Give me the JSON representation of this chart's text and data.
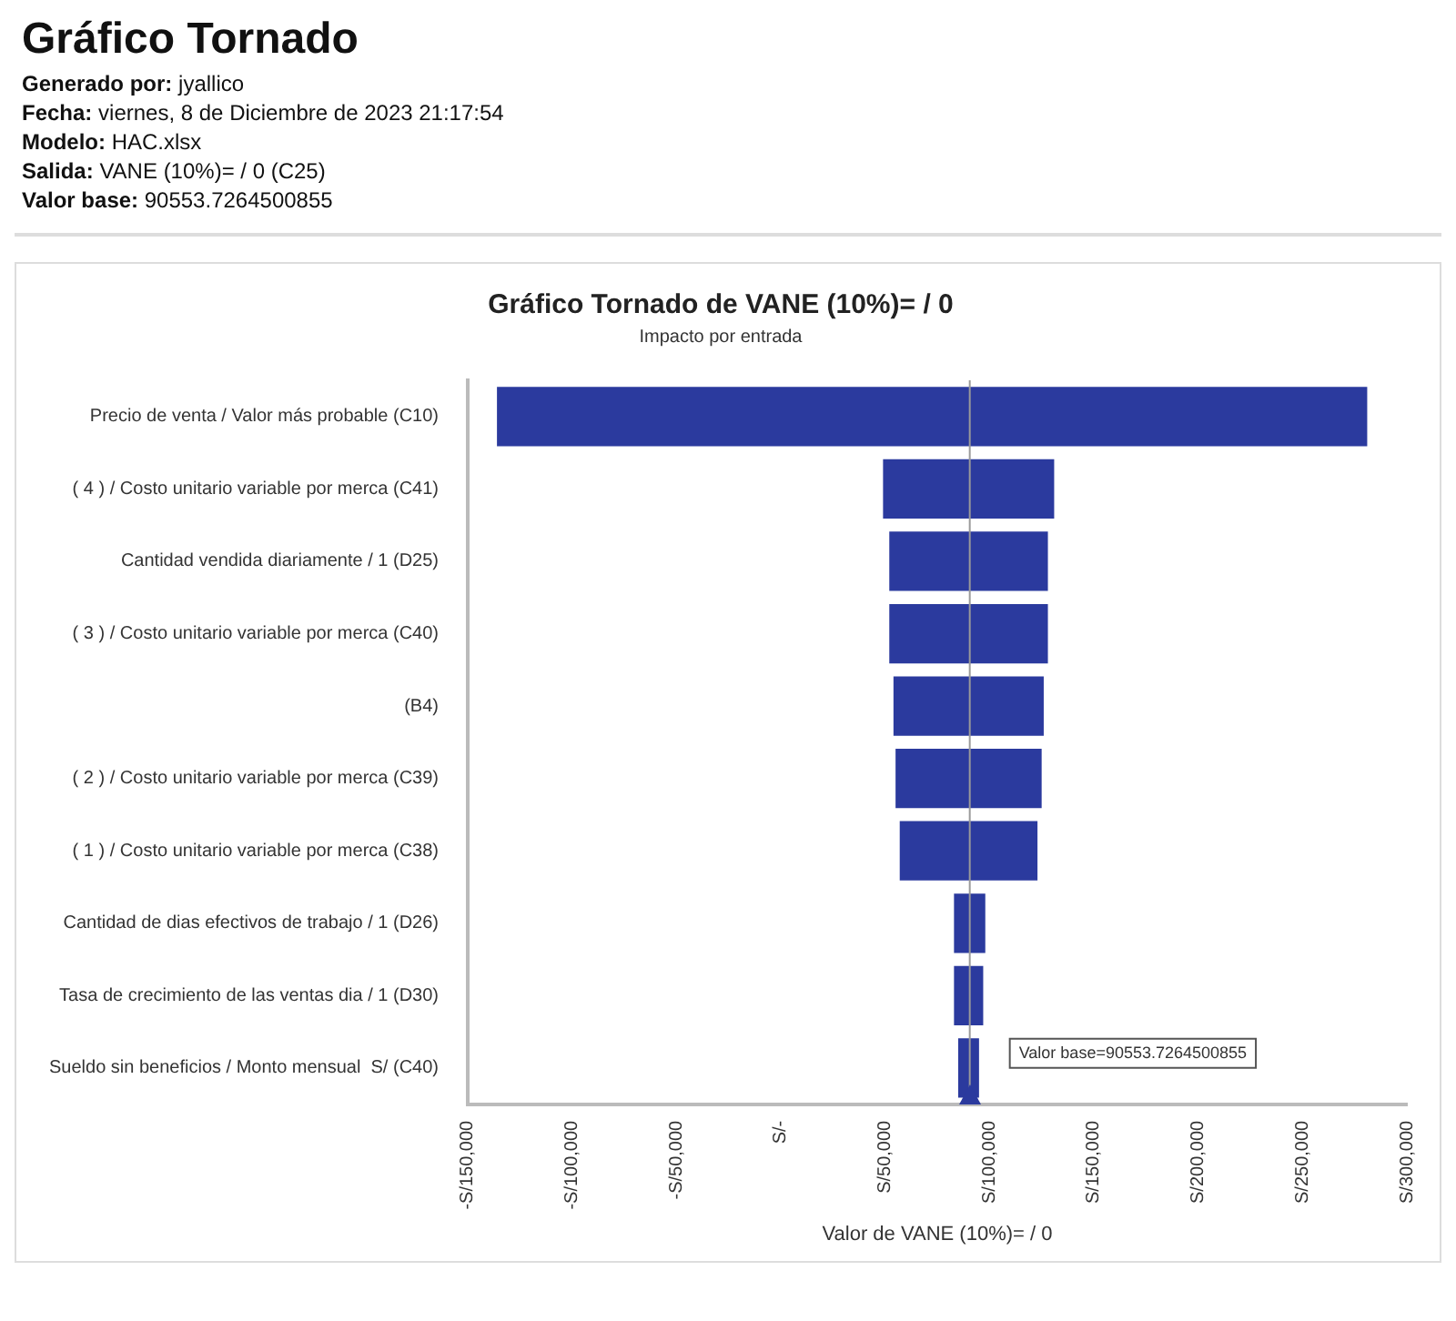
{
  "chart_data": {
    "type": "bar",
    "orientation": "horizontal",
    "title": "Gráfico Tornado de VANE (10%)= / 0",
    "subtitle": "Impacto por entrada",
    "xlabel": "Valor de VANE (10%)= / 0",
    "annotations": [
      "Gráfico Tornado",
      "Generado por: jyallico",
      "Fecha: viernes, 8 de Diciembre de 2023 21:17:54",
      "Modelo: HAC.xlsx",
      "Salida: VANE (10%)= / 0 (C25)",
      "Valor base: 90553.7264500855"
    ],
    "categories": [
      "Precio de venta / Valor más probable (C10)",
      "( 4 ) / Costo unitario variable por merca (C41)",
      "Cantidad vendida diariamente / 1 (D25)",
      "( 3 ) / Costo unitario variable por merca (C40)",
      "(B4)",
      "( 2 ) / Costo unitario variable por merca (C39)",
      "( 1 ) / Costo unitario variable por merca (C38)",
      "Cantidad de dias efectivos de trabajo / 1 (D26)",
      "Tasa de crecimiento de las ventas dia / 1 (D30)",
      "Sueldo sin beneficios / Monto mensual  S/ (C40)"
    ],
    "base": [
      -136000,
      49000,
      52000,
      52000,
      54000,
      55000,
      57000,
      83000,
      83000,
      85000
    ],
    "values": [
      417000,
      82000,
      76000,
      76000,
      72000,
      70000,
      66000,
      15000,
      14000,
      10000
    ],
    "color": "#2b3a9e",
    "xlim": [
      -150000,
      300000
    ],
    "xticks": [
      {
        "value": -150000,
        "label": "-S/150,000"
      },
      {
        "value": -100000,
        "label": "-S/100,000"
      },
      {
        "value": -50000,
        "label": "-S/50,000"
      },
      {
        "value": 0,
        "label": "S/-"
      },
      {
        "value": 50000,
        "label": "S/50,000"
      },
      {
        "value": 100000,
        "label": "S/100,000"
      },
      {
        "value": 150000,
        "label": "S/150,000"
      },
      {
        "value": 200000,
        "label": "S/200,000"
      },
      {
        "value": 250000,
        "label": "S/250,000"
      },
      {
        "value": 300000,
        "label": "S/300,000"
      }
    ],
    "ref_lines": [
      {
        "axis": "x",
        "value": 90553.7264500855,
        "label": "Valor base=90553.7264500855",
        "color": "#9a9a9a"
      }
    ],
    "grid": false,
    "legend": false
  }
}
